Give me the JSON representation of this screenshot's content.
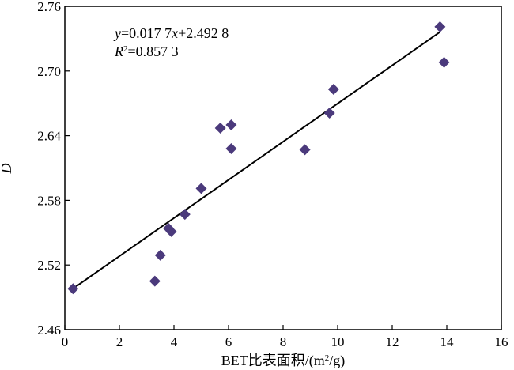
{
  "chart_data": {
    "type": "scatter",
    "xlabel": "BET比表面积/(m²/g)",
    "ylabel": "D",
    "xlim": [
      0,
      16
    ],
    "ylim": [
      2.46,
      2.76
    ],
    "xticks": [
      0,
      2,
      4,
      6,
      8,
      10,
      12,
      14,
      16
    ],
    "yticks": [
      2.46,
      2.52,
      2.58,
      2.64,
      2.7,
      2.76
    ],
    "xtick_labels": [
      "0",
      "2",
      "4",
      "6",
      "8",
      "10",
      "12",
      "14",
      "16"
    ],
    "ytick_labels": [
      "2.46",
      "2.52",
      "2.58",
      "2.64",
      "2.70",
      "2.76"
    ],
    "grid": false,
    "marker_color": "#4b3a7c",
    "points": [
      {
        "x": 0.3,
        "y": 2.498
      },
      {
        "x": 3.3,
        "y": 2.505
      },
      {
        "x": 3.5,
        "y": 2.529
      },
      {
        "x": 3.8,
        "y": 2.554
      },
      {
        "x": 3.9,
        "y": 2.551
      },
      {
        "x": 4.4,
        "y": 2.567
      },
      {
        "x": 5.0,
        "y": 2.591
      },
      {
        "x": 5.7,
        "y": 2.647
      },
      {
        "x": 6.1,
        "y": 2.65
      },
      {
        "x": 6.1,
        "y": 2.628
      },
      {
        "x": 8.8,
        "y": 2.627
      },
      {
        "x": 9.7,
        "y": 2.661
      },
      {
        "x": 9.85,
        "y": 2.683
      },
      {
        "x": 13.75,
        "y": 2.741
      },
      {
        "x": 13.9,
        "y": 2.708
      }
    ],
    "fit": {
      "slope": 0.0177,
      "intercept": 2.4928,
      "x_range": [
        0.3,
        13.75
      ],
      "equation_label": "y=0.017 7x+2.492 8",
      "r2_label": "R²=0.857 3"
    }
  }
}
